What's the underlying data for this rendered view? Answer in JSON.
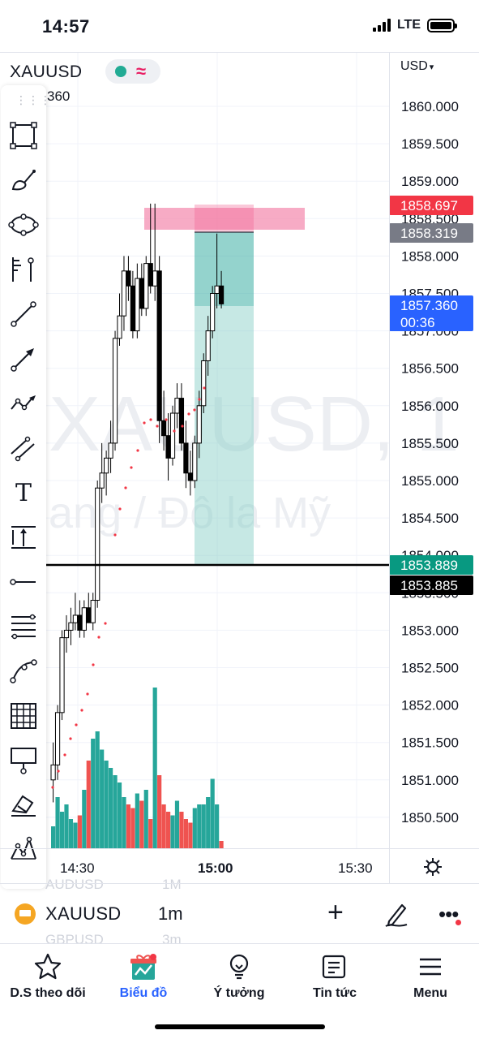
{
  "status_bar": {
    "time": "14:57",
    "network": "LTE"
  },
  "chart": {
    "symbol": "XAUUSD",
    "ohlc_partial": "360",
    "currency": "USD",
    "watermark_line1": "XAUUSD, 1",
    "watermark_line2": "ang / Đô la Mỹ",
    "price_ticks": [
      "1860.000",
      "1859.500",
      "1859.000",
      "1858.500",
      "1858.000",
      "1857.500",
      "1857.000",
      "1856.500",
      "1856.000",
      "1855.500",
      "1855.000",
      "1854.500",
      "1854.000",
      "1853.500",
      "1853.000",
      "1852.500",
      "1852.000",
      "1851.500",
      "1851.000",
      "1850.500"
    ],
    "price_labels": {
      "stop_loss": "1858.697",
      "entry": "1858.319",
      "current": "1857.360",
      "countdown": "00:36",
      "take_profit": "1853.889",
      "horizontal_line": "1853.885"
    },
    "time_labels": [
      "14:30",
      "15:00",
      "15:30"
    ],
    "colors": {
      "bull_volume": "#26a69a",
      "bear_volume": "#ef5350",
      "stop_zone": "#f48fb1",
      "target_zone": "#80cbc4",
      "current_price": "#2962ff",
      "sl_label": "#f23645",
      "tp_label": "#089981"
    },
    "ghost_symbols": [
      {
        "symbol": "AUDUSD",
        "tf": "1M"
      },
      {
        "symbol": "GBPUSD",
        "tf": "3m"
      }
    ]
  },
  "toolbar": {
    "tools": [
      "rectangle-icon",
      "brush-icon",
      "ellipse-icon",
      "fibonacci-icon",
      "trend-line-icon",
      "arrow-icon",
      "path-icon",
      "parallel-channel-icon",
      "text-icon",
      "price-range-icon",
      "horizontal-ray-icon",
      "fib-retracement-icon",
      "curve-icon",
      "grid-icon",
      "callout-icon",
      "eraser-icon",
      "pattern-icon"
    ],
    "text_tool_glyph": "T"
  },
  "symbol_bar": {
    "symbol": "XAUUSD",
    "timeframe": "1m"
  },
  "tabs": [
    {
      "label": "D.S theo dõi",
      "icon": "star-icon"
    },
    {
      "label": "Biểu đồ",
      "icon": "chart-gift-icon"
    },
    {
      "label": "Ý tưởng",
      "icon": "lightbulb-icon"
    },
    {
      "label": "Tin tức",
      "icon": "news-icon"
    },
    {
      "label": "Menu",
      "icon": "hamburger-icon"
    }
  ]
}
